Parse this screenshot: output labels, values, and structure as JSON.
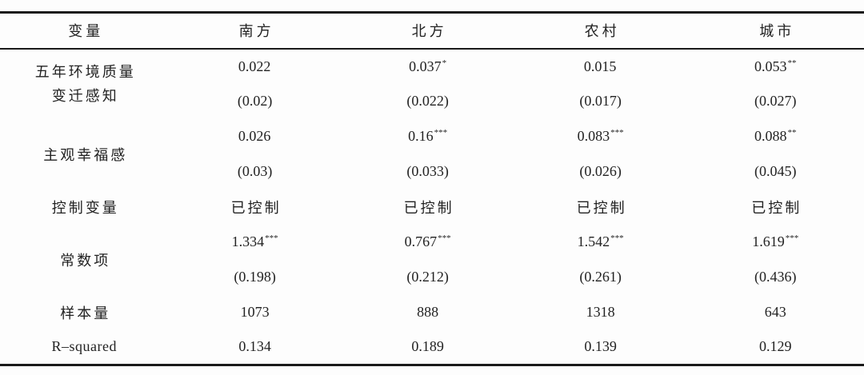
{
  "table": {
    "header": [
      "变量",
      "南方",
      "北方",
      "农村",
      "城市"
    ],
    "groups": [
      {
        "label_lines": [
          "五年环境质量",
          "变迁感知"
        ],
        "coef": [
          {
            "v": "0.022",
            "stars": ""
          },
          {
            "v": "0.037",
            "stars": "*"
          },
          {
            "v": "0.015",
            "stars": ""
          },
          {
            "v": "0.053",
            "stars": "**"
          }
        ],
        "se": [
          "(0.02)",
          "(0.022)",
          "(0.017)",
          "(0.027)"
        ]
      },
      {
        "label": "主观幸福感",
        "coef": [
          {
            "v": "0.026",
            "stars": ""
          },
          {
            "v": "0.16",
            "stars": "***"
          },
          {
            "v": "0.083",
            "stars": "***"
          },
          {
            "v": "0.088",
            "stars": "**"
          }
        ],
        "se": [
          "(0.03)",
          "(0.033)",
          "(0.026)",
          "(0.045)"
        ]
      },
      {
        "label": "控制变量",
        "values": [
          "已控制",
          "已控制",
          "已控制",
          "已控制"
        ]
      },
      {
        "label": "常数项",
        "coef": [
          {
            "v": "1.334",
            "stars": "***"
          },
          {
            "v": "0.767",
            "stars": "***"
          },
          {
            "v": "1.542",
            "stars": "***"
          },
          {
            "v": "1.619",
            "stars": "***"
          }
        ],
        "se": [
          "(0.198)",
          "(0.212)",
          "(0.261)",
          "(0.436)"
        ]
      },
      {
        "label": "样本量",
        "values": [
          "1073",
          "888",
          "1318",
          "643"
        ]
      },
      {
        "label": "R–squared",
        "values": [
          "0.134",
          "0.189",
          "0.139",
          "0.129"
        ]
      }
    ]
  },
  "colors": {
    "text": "#222222",
    "rule": "#1a1a1a",
    "background": "#fdfdfd"
  }
}
